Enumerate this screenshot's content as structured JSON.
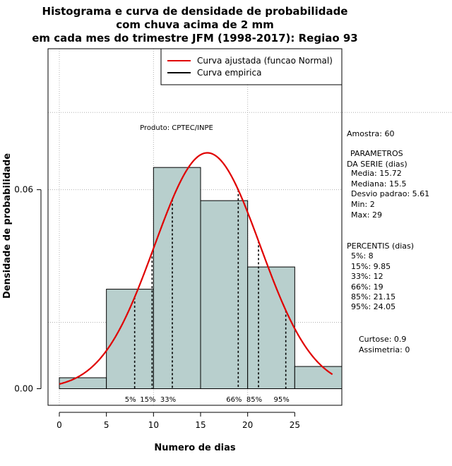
{
  "chart_data": {
    "type": "bar",
    "title": [
      "Histograma e curva de densidade de probabilidade",
      "com chuva acima de 2 mm",
      "em cada mes do trimestre JFM (1998-2017): Regiao 93"
    ],
    "xlabel": "Numero de dias",
    "ylabel": "Densidade de probabilidade",
    "xlim": [
      -1.2,
      30
    ],
    "ylim": [
      -0.005,
      0.1025
    ],
    "xticks": [
      0,
      5,
      10,
      15,
      20,
      25
    ],
    "yticks": [
      0.0,
      0.06
    ],
    "ytick_labels": [
      "0.00",
      "0.06"
    ],
    "grid_x": [
      0,
      10,
      20
    ],
    "grid_y": [
      0.02,
      0.06
    ],
    "histogram": {
      "bin_edges": [
        0,
        5,
        10,
        15,
        20,
        25,
        30
      ],
      "densities": [
        0.0033,
        0.03,
        0.0667,
        0.0567,
        0.0367,
        0.0067
      ]
    },
    "legend": {
      "position": "top-right",
      "entries": [
        {
          "label": "Curva ajustada (funcao Normal)",
          "color": "#e00000"
        },
        {
          "label": "Curva empirica",
          "color": "#000000"
        }
      ]
    },
    "normal_fit": {
      "mean": 15.72,
      "sd": 5.61,
      "x_range": [
        0,
        29
      ],
      "color": "#e00000"
    },
    "percentile_lines": [
      {
        "label": "5%",
        "x": 8
      },
      {
        "label": "15%",
        "x": 9.85
      },
      {
        "label": "33%",
        "x": 12
      },
      {
        "label": "66%",
        "x": 19
      },
      {
        "label": "85%",
        "x": 21.15
      },
      {
        "label": "95%",
        "x": 24.05
      }
    ],
    "product_label": "Produto: CPTEC/INPE",
    "side_text": {
      "amostra": "Amostra: 60",
      "parametros_title": [
        "PARAMETROS",
        "DA SERIE (dias)"
      ],
      "parametros": [
        "Media: 15.72",
        "Mediana: 15.5",
        "Desvio padrao: 5.61",
        "Min: 2",
        "Max: 29"
      ],
      "percentis_title": "PERCENTIS (dias)",
      "percentis": [
        "5%: 8",
        "15%: 9.85",
        "33%: 12",
        "66%: 19",
        "85%: 21.15",
        "95%: 24.05"
      ],
      "extra": [
        "Curtose: 0.9",
        "Assimetria: 0"
      ]
    },
    "colors": {
      "bar_fill": "#b8cfcd",
      "bar_stroke": "#000000",
      "grid": "#b0b0b0"
    }
  }
}
